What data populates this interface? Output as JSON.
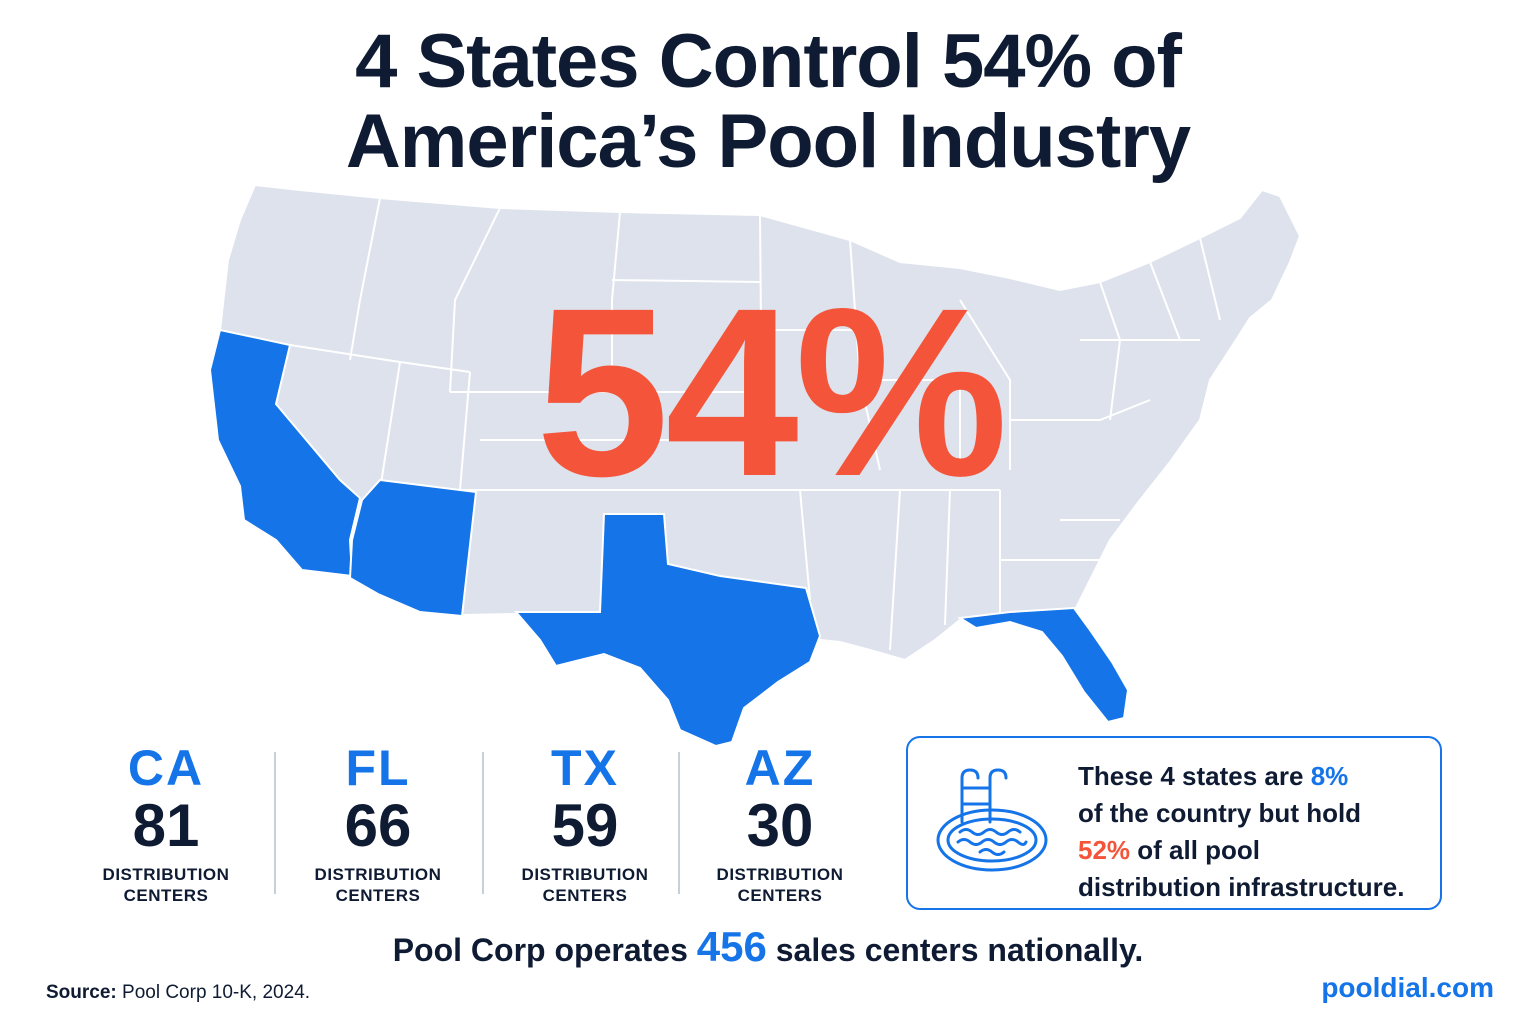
{
  "title": {
    "line1": "4 States Control 54% of",
    "line2": "America’s Pool Industry"
  },
  "headline_pct": "54%",
  "colors": {
    "highlight_state": "#1474e8",
    "other_state": "#dde2ec",
    "accent_red": "#f4553a",
    "text_dark": "#0f1b33"
  },
  "states": [
    {
      "code": "CA",
      "count": "81",
      "label_line1": "DISTRIBUTION",
      "label_line2": "CENTERS"
    },
    {
      "code": "FL",
      "count": "66",
      "label_line1": "DISTRIBUTION",
      "label_line2": "CENTERS"
    },
    {
      "code": "TX",
      "count": "59",
      "label_line1": "DISTRIBUTION",
      "label_line2": "CENTERS"
    },
    {
      "code": "AZ",
      "count": "30",
      "label_line1": "DISTRIBUTION",
      "label_line2": "CENTERS"
    }
  ],
  "callout": {
    "icon": "pool-icon",
    "part1": "These 4 states are ",
    "pct1": "8%",
    "part2": "of the country but hold",
    "pct2": "52%",
    "part3": " of all pool",
    "part4": "distribution infrastructure."
  },
  "bottom": {
    "before": "Pool Corp operates ",
    "number": "456",
    "after": " sales centers nationally."
  },
  "source": {
    "label": "Source:",
    "text": "Pool Corp 10-K, 2024."
  },
  "site": "pooldial.com"
}
